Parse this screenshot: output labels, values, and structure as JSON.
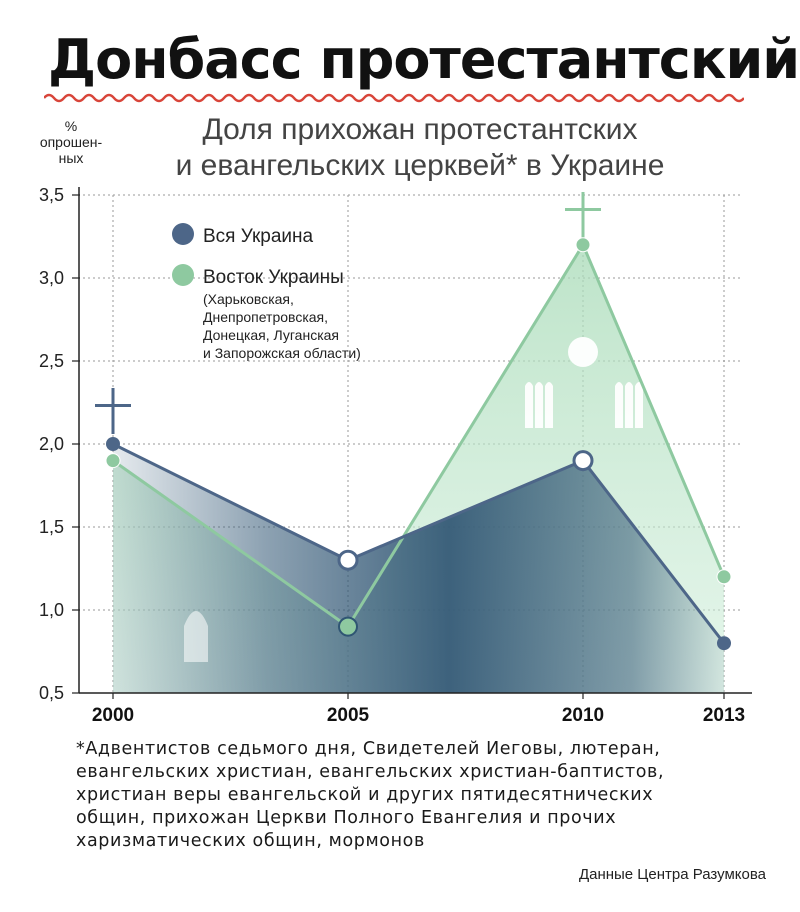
{
  "page": {
    "headline": "Донбасс протестантский",
    "source": "Данные Центра Разумкова",
    "footnote": [
      "*Адвентистов седьмого дня, Свидетелей Иеговы, лютеран,",
      "евангельских христиан, евангельских христиан-баптистов,",
      "христиан веры евангельской и других пятидесятнических",
      "общин, прихожан Церкви Полного Евангелия и прочих",
      "харизматических общин, мормонов"
    ]
  },
  "colors": {
    "ukraine": "#4d6688",
    "east": "#8ec9a0",
    "ukraine_fill": "#2f5573",
    "east_fill": "#a9dbb8",
    "accent_red": "#d8453a"
  },
  "chart_data": {
    "type": "line",
    "title": [
      "Доля прихожан протестантских",
      "и евангельских церквей* в Украине"
    ],
    "ylabel": [
      "%",
      "опрошен-",
      "ных"
    ],
    "xlabel": "",
    "categories": [
      "2000",
      "2005",
      "2010",
      "2013"
    ],
    "x": [
      2000,
      2005,
      2010,
      2013
    ],
    "ylim": [
      0.5,
      3.5
    ],
    "yticks": [
      "0,5",
      "1,0",
      "1,5",
      "2,0",
      "2,5",
      "3,0",
      "3,5"
    ],
    "yticks_values": [
      0.5,
      1.0,
      1.5,
      2.0,
      2.5,
      3.0,
      3.5
    ],
    "grid": true,
    "legend_position": "top-left",
    "series": [
      {
        "name": "Вся Украина",
        "values": [
          2.0,
          1.3,
          1.9,
          0.8
        ]
      },
      {
        "name": "Восток Украины",
        "note": [
          "(Харьковская,",
          "Днепропетровская,",
          "Донецкая, Луганская",
          "и Запорожская области)"
        ],
        "values": [
          1.9,
          0.9,
          3.2,
          1.2
        ]
      }
    ]
  }
}
